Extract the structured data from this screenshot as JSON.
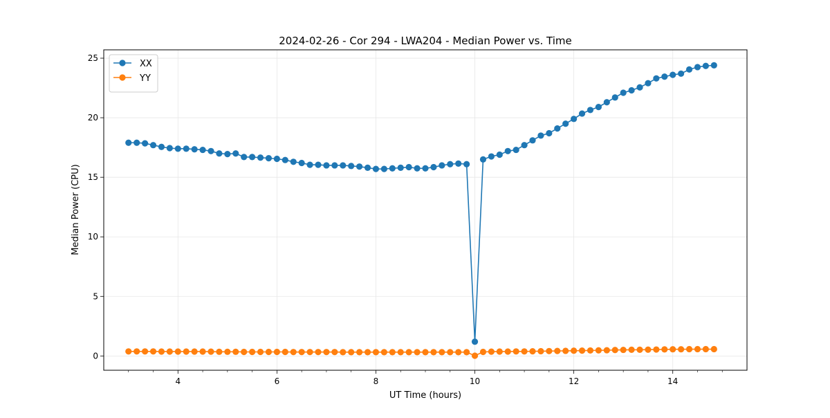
{
  "chart_data": {
    "type": "line",
    "title": "2024-02-26 - Cor 294 - LWA204 - Median Power vs. Time",
    "xlabel": "UT Time (hours)",
    "ylabel": "Median Power (CPU)",
    "xlim": [
      2.5,
      15.5
    ],
    "ylim": [
      -1.2,
      25.7
    ],
    "x_ticks": [
      4,
      6,
      8,
      10,
      12,
      14
    ],
    "x_tick_labels": [
      "4",
      "6",
      "8",
      "10",
      "12",
      "14"
    ],
    "y_ticks": [
      0,
      5,
      10,
      15,
      20,
      25
    ],
    "y_tick_labels": [
      "0",
      "5",
      "10",
      "15",
      "20",
      "25"
    ],
    "grid": true,
    "legend_position": "top-left",
    "series": [
      {
        "name": "XX",
        "color": "#1f77b4",
        "x": [
          3.0,
          3.1667,
          3.3333,
          3.5,
          3.6667,
          3.8333,
          4.0,
          4.1667,
          4.3333,
          4.5,
          4.6667,
          4.8333,
          5.0,
          5.1667,
          5.3333,
          5.5,
          5.6667,
          5.8333,
          6.0,
          6.1667,
          6.3333,
          6.5,
          6.6667,
          6.8333,
          7.0,
          7.1667,
          7.3333,
          7.5,
          7.6667,
          7.8333,
          8.0,
          8.1667,
          8.3333,
          8.5,
          8.6667,
          8.8333,
          9.0,
          9.1667,
          9.3333,
          9.5,
          9.6667,
          9.8333,
          10.0,
          10.1667,
          10.3333,
          10.5,
          10.6667,
          10.8333,
          11.0,
          11.1667,
          11.3333,
          11.5,
          11.6667,
          11.8333,
          12.0,
          12.1667,
          12.3333,
          12.5,
          12.6667,
          12.8333,
          13.0,
          13.1667,
          13.3333,
          13.5,
          13.6667,
          13.8333,
          14.0,
          14.1667,
          14.3333,
          14.5,
          14.6667,
          14.8333
        ],
        "values": [
          17.9,
          17.9,
          17.85,
          17.7,
          17.55,
          17.45,
          17.4,
          17.4,
          17.35,
          17.3,
          17.2,
          17.0,
          16.95,
          17.0,
          16.7,
          16.7,
          16.65,
          16.6,
          16.55,
          16.45,
          16.3,
          16.2,
          16.05,
          16.05,
          16.0,
          16.0,
          16.0,
          15.95,
          15.9,
          15.8,
          15.7,
          15.7,
          15.75,
          15.8,
          15.85,
          15.75,
          15.75,
          15.85,
          16.0,
          16.1,
          16.15,
          16.1,
          1.2,
          16.5,
          16.75,
          16.9,
          17.2,
          17.3,
          17.7,
          18.1,
          18.5,
          18.7,
          19.1,
          19.5,
          19.9,
          20.35,
          20.65,
          20.9,
          21.3,
          21.7,
          22.1,
          22.3,
          22.55,
          22.9,
          23.3,
          23.45,
          23.6,
          23.7,
          24.05,
          24.25,
          24.35,
          24.4
        ]
      },
      {
        "name": "YY",
        "color": "#ff7f0e",
        "x": [
          3.0,
          3.1667,
          3.3333,
          3.5,
          3.6667,
          3.8333,
          4.0,
          4.1667,
          4.3333,
          4.5,
          4.6667,
          4.8333,
          5.0,
          5.1667,
          5.3333,
          5.5,
          5.6667,
          5.8333,
          6.0,
          6.1667,
          6.3333,
          6.5,
          6.6667,
          6.8333,
          7.0,
          7.1667,
          7.3333,
          7.5,
          7.6667,
          7.8333,
          8.0,
          8.1667,
          8.3333,
          8.5,
          8.6667,
          8.8333,
          9.0,
          9.1667,
          9.3333,
          9.5,
          9.6667,
          9.8333,
          10.0,
          10.1667,
          10.3333,
          10.5,
          10.6667,
          10.8333,
          11.0,
          11.1667,
          11.3333,
          11.5,
          11.6667,
          11.8333,
          12.0,
          12.1667,
          12.3333,
          12.5,
          12.6667,
          12.8333,
          13.0,
          13.1667,
          13.3333,
          13.5,
          13.6667,
          13.8333,
          14.0,
          14.1667,
          14.3333,
          14.5,
          14.6667,
          14.8333
        ],
        "values": [
          0.38,
          0.38,
          0.38,
          0.38,
          0.37,
          0.37,
          0.37,
          0.37,
          0.37,
          0.37,
          0.36,
          0.35,
          0.35,
          0.35,
          0.34,
          0.34,
          0.34,
          0.34,
          0.34,
          0.34,
          0.33,
          0.33,
          0.33,
          0.33,
          0.33,
          0.33,
          0.32,
          0.32,
          0.32,
          0.32,
          0.32,
          0.32,
          0.32,
          0.32,
          0.32,
          0.32,
          0.32,
          0.32,
          0.32,
          0.32,
          0.32,
          0.32,
          0.02,
          0.34,
          0.36,
          0.37,
          0.37,
          0.38,
          0.38,
          0.39,
          0.4,
          0.41,
          0.42,
          0.43,
          0.44,
          0.45,
          0.46,
          0.47,
          0.48,
          0.5,
          0.51,
          0.52,
          0.52,
          0.53,
          0.54,
          0.55,
          0.56,
          0.56,
          0.57,
          0.57,
          0.57,
          0.57
        ]
      }
    ]
  }
}
